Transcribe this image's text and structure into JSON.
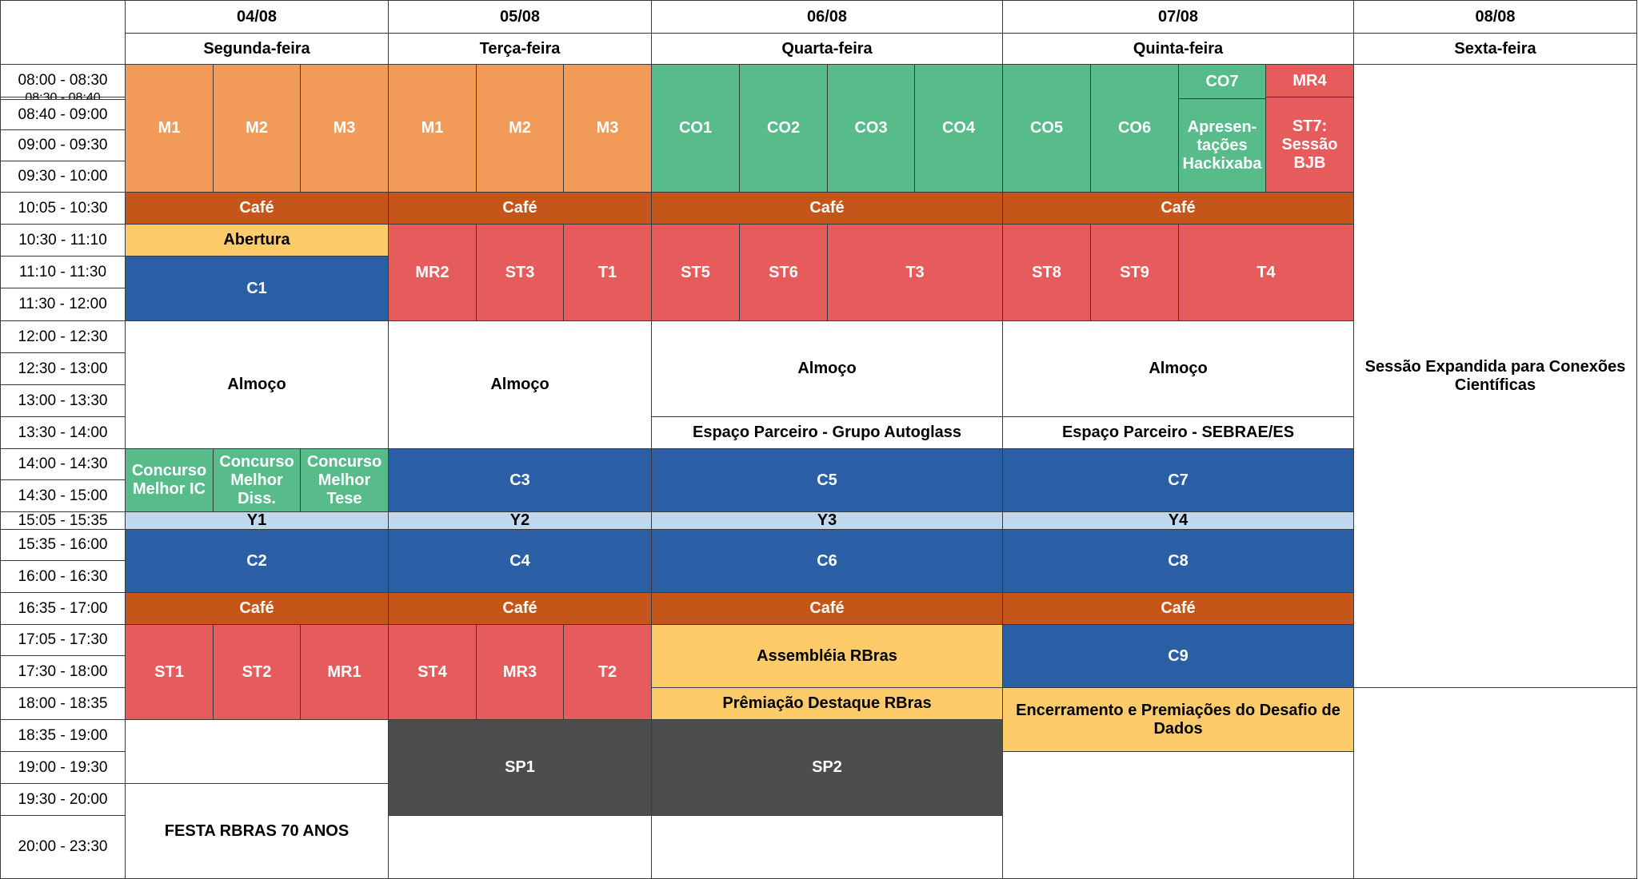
{
  "days": [
    {
      "date": "04/08",
      "weekday": "Segunda-feira"
    },
    {
      "date": "05/08",
      "weekday": "Terça-feira"
    },
    {
      "date": "06/08",
      "weekday": "Quarta-feira"
    },
    {
      "date": "07/08",
      "weekday": "Quinta-feira"
    },
    {
      "date": "08/08",
      "weekday": "Sexta-feira"
    }
  ],
  "time_slots": [
    "08:00 - 08:30",
    "08:30 - 08:40",
    "08:40 - 09:00",
    "09:00 - 09:30",
    "09:30 - 10:00",
    "10:05 - 10:30",
    "10:30 - 11:10",
    "11:10 - 11:30",
    "11:30 - 12:00",
    "12:00 - 12:30",
    "12:30 - 13:00",
    "13:00 - 13:30",
    "13:30 - 14:00",
    "14:00 - 14:30",
    "14:30 - 15:00",
    "15:05 - 15:35",
    "15:35 - 16:00",
    "16:00 - 16:30",
    "16:35 - 17:00",
    "17:05 - 17:30",
    "17:30 - 18:00",
    "18:00 - 18:35",
    "18:35 - 19:00",
    "19:00 - 19:30",
    "19:30 - 20:00",
    "20:00 - 23:30"
  ],
  "colors": {
    "minicurso": "#f29a57",
    "comunicacao_oral": "#57bb8a",
    "sessao_tecnica": "#e65c5c",
    "cafe": "#c4561a",
    "cerimonia": "#fdcb6a",
    "conferencia": "#2a5fa6",
    "youth": "#c2d8ef",
    "sessao_plenaria": "#4d4d4d",
    "livre": "#ffffff"
  },
  "sessions": [
    {
      "id": "mon-m1",
      "label": "M1",
      "cat": "minicurso",
      "day": 0,
      "part": [
        0,
        3
      ],
      "rows": [
        0,
        5
      ]
    },
    {
      "id": "mon-m2",
      "label": "M2",
      "cat": "minicurso",
      "day": 0,
      "part": [
        1,
        3
      ],
      "rows": [
        0,
        5
      ]
    },
    {
      "id": "mon-m3",
      "label": "M3",
      "cat": "minicurso",
      "day": 0,
      "part": [
        2,
        3
      ],
      "rows": [
        0,
        5
      ]
    },
    {
      "id": "mon-cafe-1",
      "label": "Café",
      "cat": "cafe",
      "day": 0,
      "part": [
        0,
        1
      ],
      "rows": [
        5,
        6
      ]
    },
    {
      "id": "mon-abertura",
      "label": "Abertura",
      "cat": "cerimonia",
      "day": 0,
      "part": [
        0,
        1
      ],
      "rows": [
        6,
        7
      ]
    },
    {
      "id": "mon-c1",
      "label": "C1",
      "cat": "conferencia",
      "day": 0,
      "part": [
        0,
        1
      ],
      "rows": [
        7,
        9
      ]
    },
    {
      "id": "mon-almoco",
      "label": "Almoço",
      "cat": "livre",
      "day": 0,
      "part": [
        0,
        1
      ],
      "rows": [
        9,
        13
      ]
    },
    {
      "id": "mon-concurso-ic",
      "label": "Concurso Melhor IC",
      "cat": "comunicacao_oral",
      "day": 0,
      "part": [
        0,
        3
      ],
      "rows": [
        13,
        15
      ]
    },
    {
      "id": "mon-concurso-diss",
      "label": "Concurso Melhor Diss.",
      "cat": "comunicacao_oral",
      "day": 0,
      "part": [
        1,
        3
      ],
      "rows": [
        13,
        15
      ]
    },
    {
      "id": "mon-concurso-tese",
      "label": "Concurso Melhor Tese",
      "cat": "comunicacao_oral",
      "day": 0,
      "part": [
        2,
        3
      ],
      "rows": [
        13,
        15
      ]
    },
    {
      "id": "mon-y1",
      "label": "Y1",
      "cat": "youth",
      "day": 0,
      "part": [
        0,
        1
      ],
      "rows": [
        15,
        16
      ]
    },
    {
      "id": "mon-c2",
      "label": "C2",
      "cat": "conferencia",
      "day": 0,
      "part": [
        0,
        1
      ],
      "rows": [
        16,
        18
      ]
    },
    {
      "id": "mon-cafe-2",
      "label": "Café",
      "cat": "cafe",
      "day": 0,
      "part": [
        0,
        1
      ],
      "rows": [
        18,
        19
      ]
    },
    {
      "id": "mon-st1",
      "label": "ST1",
      "cat": "sessao_tecnica",
      "day": 0,
      "part": [
        0,
        3
      ],
      "rows": [
        19,
        22
      ]
    },
    {
      "id": "mon-st2",
      "label": "ST2",
      "cat": "sessao_tecnica",
      "day": 0,
      "part": [
        1,
        3
      ],
      "rows": [
        19,
        22
      ]
    },
    {
      "id": "mon-mr1",
      "label": "MR1",
      "cat": "sessao_tecnica",
      "day": 0,
      "part": [
        2,
        3
      ],
      "rows": [
        19,
        22
      ]
    },
    {
      "id": "mon-livre",
      "label": "",
      "cat": "livre",
      "day": 0,
      "part": [
        0,
        1
      ],
      "rows": [
        22,
        24
      ]
    },
    {
      "id": "mon-festa",
      "label": "FESTA RBRAS 70 ANOS",
      "cat": "livre",
      "day": 0,
      "part": [
        0,
        1
      ],
      "rows": [
        24,
        26
      ]
    },
    {
      "id": "tue-m1",
      "label": "M1",
      "cat": "minicurso",
      "day": 1,
      "part": [
        0,
        3
      ],
      "rows": [
        0,
        5
      ]
    },
    {
      "id": "tue-m2",
      "label": "M2",
      "cat": "minicurso",
      "day": 1,
      "part": [
        1,
        3
      ],
      "rows": [
        0,
        5
      ]
    },
    {
      "id": "tue-m3",
      "label": "M3",
      "cat": "minicurso",
      "day": 1,
      "part": [
        2,
        3
      ],
      "rows": [
        0,
        5
      ]
    },
    {
      "id": "tue-cafe-1",
      "label": "Café",
      "cat": "cafe",
      "day": 1,
      "part": [
        0,
        1
      ],
      "rows": [
        5,
        6
      ]
    },
    {
      "id": "tue-mr2",
      "label": "MR2",
      "cat": "sessao_tecnica",
      "day": 1,
      "part": [
        0,
        3
      ],
      "rows": [
        6,
        9
      ]
    },
    {
      "id": "tue-st3",
      "label": "ST3",
      "cat": "sessao_tecnica",
      "day": 1,
      "part": [
        1,
        3
      ],
      "rows": [
        6,
        9
      ]
    },
    {
      "id": "tue-t1",
      "label": "T1",
      "cat": "sessao_tecnica",
      "day": 1,
      "part": [
        2,
        3
      ],
      "rows": [
        6,
        9
      ]
    },
    {
      "id": "tue-almoco",
      "label": "Almoço",
      "cat": "livre",
      "day": 1,
      "part": [
        0,
        1
      ],
      "rows": [
        9,
        13
      ]
    },
    {
      "id": "tue-c3",
      "label": "C3",
      "cat": "conferencia",
      "day": 1,
      "part": [
        0,
        1
      ],
      "rows": [
        13,
        15
      ]
    },
    {
      "id": "tue-y2",
      "label": "Y2",
      "cat": "youth",
      "day": 1,
      "part": [
        0,
        1
      ],
      "rows": [
        15,
        16
      ]
    },
    {
      "id": "tue-c4",
      "label": "C4",
      "cat": "conferencia",
      "day": 1,
      "part": [
        0,
        1
      ],
      "rows": [
        16,
        18
      ]
    },
    {
      "id": "tue-cafe-2",
      "label": "Café",
      "cat": "cafe",
      "day": 1,
      "part": [
        0,
        1
      ],
      "rows": [
        18,
        19
      ]
    },
    {
      "id": "tue-st4",
      "label": "ST4",
      "cat": "sessao_tecnica",
      "day": 1,
      "part": [
        0,
        3
      ],
      "rows": [
        19,
        22
      ]
    },
    {
      "id": "tue-mr3",
      "label": "MR3",
      "cat": "sessao_tecnica",
      "day": 1,
      "part": [
        1,
        3
      ],
      "rows": [
        19,
        22
      ]
    },
    {
      "id": "tue-t2",
      "label": "T2",
      "cat": "sessao_tecnica",
      "day": 1,
      "part": [
        2,
        3
      ],
      "rows": [
        19,
        22
      ]
    },
    {
      "id": "tue-sp1",
      "label": "SP1",
      "cat": "sessao_plenaria",
      "day": 1,
      "part": [
        0,
        1
      ],
      "rows": [
        22,
        25
      ]
    },
    {
      "id": "tue-livre",
      "label": "",
      "cat": "livre",
      "day": 1,
      "part": [
        0,
        1
      ],
      "rows": [
        25,
        26
      ]
    },
    {
      "id": "wed-co1",
      "label": "CO1",
      "cat": "comunicacao_oral",
      "day": 2,
      "part": [
        0,
        4
      ],
      "rows": [
        0,
        5
      ]
    },
    {
      "id": "wed-co2",
      "label": "CO2",
      "cat": "comunicacao_oral",
      "day": 2,
      "part": [
        1,
        4
      ],
      "rows": [
        0,
        5
      ]
    },
    {
      "id": "wed-co3",
      "label": "CO3",
      "cat": "comunicacao_oral",
      "day": 2,
      "part": [
        2,
        4
      ],
      "rows": [
        0,
        5
      ]
    },
    {
      "id": "wed-co4",
      "label": "CO4",
      "cat": "comunicacao_oral",
      "day": 2,
      "part": [
        3,
        4
      ],
      "rows": [
        0,
        5
      ]
    },
    {
      "id": "wed-cafe-1",
      "label": "Café",
      "cat": "cafe",
      "day": 2,
      "part": [
        0,
        1
      ],
      "rows": [
        5,
        6
      ]
    },
    {
      "id": "wed-st5",
      "label": "ST5",
      "cat": "sessao_tecnica",
      "day": 2,
      "part": [
        0,
        4
      ],
      "rows": [
        6,
        9
      ]
    },
    {
      "id": "wed-st6",
      "label": "ST6",
      "cat": "sessao_tecnica",
      "day": 2,
      "part": [
        1,
        4
      ],
      "rows": [
        6,
        9
      ]
    },
    {
      "id": "wed-t3",
      "label": "T3",
      "cat": "sessao_tecnica",
      "day": 2,
      "part": [
        2,
        4,
        2
      ],
      "rows": [
        6,
        9
      ]
    },
    {
      "id": "wed-almoco",
      "label": "Almoço",
      "cat": "livre",
      "day": 2,
      "part": [
        0,
        1
      ],
      "rows": [
        9,
        12
      ]
    },
    {
      "id": "wed-parceiro",
      "label": "Espaço Parceiro - Grupo Autoglass",
      "cat": "livre",
      "day": 2,
      "part": [
        0,
        1
      ],
      "rows": [
        12,
        13
      ]
    },
    {
      "id": "wed-c5",
      "label": "C5",
      "cat": "conferencia",
      "day": 2,
      "part": [
        0,
        1
      ],
      "rows": [
        13,
        15
      ]
    },
    {
      "id": "wed-y3",
      "label": "Y3",
      "cat": "youth",
      "day": 2,
      "part": [
        0,
        1
      ],
      "rows": [
        15,
        16
      ]
    },
    {
      "id": "wed-c6",
      "label": "C6",
      "cat": "conferencia",
      "day": 2,
      "part": [
        0,
        1
      ],
      "rows": [
        16,
        18
      ]
    },
    {
      "id": "wed-cafe-2",
      "label": "Café",
      "cat": "cafe",
      "day": 2,
      "part": [
        0,
        1
      ],
      "rows": [
        18,
        19
      ]
    },
    {
      "id": "wed-assembleia",
      "label": "Assembléia RBras",
      "cat": "cerimonia",
      "day": 2,
      "part": [
        0,
        1
      ],
      "rows": [
        19,
        21
      ]
    },
    {
      "id": "wed-premiacao",
      "label": "Prêmiação Destaque RBras",
      "cat": "cerimonia",
      "day": 2,
      "part": [
        0,
        1
      ],
      "rows": [
        21,
        22
      ]
    },
    {
      "id": "wed-sp2",
      "label": "SP2",
      "cat": "sessao_plenaria",
      "day": 2,
      "part": [
        0,
        1
      ],
      "rows": [
        22,
        25
      ]
    },
    {
      "id": "wed-livre",
      "label": "",
      "cat": "livre",
      "day": 2,
      "part": [
        0,
        1
      ],
      "rows": [
        25,
        26
      ]
    },
    {
      "id": "thu-co5",
      "label": "CO5",
      "cat": "comunicacao_oral",
      "day": 3,
      "part": [
        0,
        4
      ],
      "rows": [
        0,
        5
      ]
    },
    {
      "id": "thu-co6",
      "label": "CO6",
      "cat": "comunicacao_oral",
      "day": 3,
      "part": [
        1,
        4
      ],
      "rows": [
        0,
        5
      ]
    },
    {
      "id": "thu-co7",
      "label": "CO7",
      "cat": "comunicacao_oral",
      "day": 3,
      "part": [
        2,
        4
      ],
      "rows": [
        0,
        1.5
      ]
    },
    {
      "id": "thu-hackixaba",
      "label": "Apresen-\ntações\nHackixaba",
      "cat": "comunicacao_oral",
      "day": 3,
      "part": [
        2,
        4
      ],
      "rows": [
        1.5,
        5
      ]
    },
    {
      "id": "thu-mr4",
      "label": "MR4",
      "cat": "sessao_tecnica",
      "day": 3,
      "part": [
        3,
        4
      ],
      "rows": [
        0,
        1
      ]
    },
    {
      "id": "thu-st7",
      "label": "ST7:\nSessão\nBJB",
      "cat": "sessao_tecnica",
      "day": 3,
      "part": [
        3,
        4
      ],
      "rows": [
        1,
        5
      ]
    },
    {
      "id": "thu-cafe-1",
      "label": "Café",
      "cat": "cafe",
      "day": 3,
      "part": [
        0,
        1
      ],
      "rows": [
        5,
        6
      ]
    },
    {
      "id": "thu-st8",
      "label": "ST8",
      "cat": "sessao_tecnica",
      "day": 3,
      "part": [
        0,
        4
      ],
      "rows": [
        6,
        9
      ]
    },
    {
      "id": "thu-st9",
      "label": "ST9",
      "cat": "sessao_tecnica",
      "day": 3,
      "part": [
        1,
        4
      ],
      "rows": [
        6,
        9
      ]
    },
    {
      "id": "thu-t4",
      "label": "T4",
      "cat": "sessao_tecnica",
      "day": 3,
      "part": [
        2,
        4,
        2
      ],
      "rows": [
        6,
        9
      ]
    },
    {
      "id": "thu-almoco",
      "label": "Almoço",
      "cat": "livre",
      "day": 3,
      "part": [
        0,
        1
      ],
      "rows": [
        9,
        12
      ]
    },
    {
      "id": "thu-parceiro",
      "label": "Espaço Parceiro - SEBRAE/ES",
      "cat": "livre",
      "day": 3,
      "part": [
        0,
        1
      ],
      "rows": [
        12,
        13
      ]
    },
    {
      "id": "thu-c7",
      "label": "C7",
      "cat": "conferencia",
      "day": 3,
      "part": [
        0,
        1
      ],
      "rows": [
        13,
        15
      ]
    },
    {
      "id": "thu-y4",
      "label": "Y4",
      "cat": "youth",
      "day": 3,
      "part": [
        0,
        1
      ],
      "rows": [
        15,
        16
      ]
    },
    {
      "id": "thu-c8",
      "label": "C8",
      "cat": "conferencia",
      "day": 3,
      "part": [
        0,
        1
      ],
      "rows": [
        16,
        18
      ]
    },
    {
      "id": "thu-cafe-2",
      "label": "Café",
      "cat": "cafe",
      "day": 3,
      "part": [
        0,
        1
      ],
      "rows": [
        18,
        19
      ]
    },
    {
      "id": "thu-c9",
      "label": "C9",
      "cat": "conferencia",
      "day": 3,
      "part": [
        0,
        1
      ],
      "rows": [
        19,
        21
      ]
    },
    {
      "id": "thu-encerramento",
      "label": "Encerramento e Premiações do Desafio de Dados",
      "cat": "cerimonia",
      "day": 3,
      "part": [
        0,
        1
      ],
      "rows": [
        21,
        23
      ]
    },
    {
      "id": "thu-livre",
      "label": "",
      "cat": "livre",
      "day": 3,
      "part": [
        0,
        1
      ],
      "rows": [
        23,
        26
      ]
    },
    {
      "id": "fri-sessao-expandida",
      "label": "Sessão Expandida para Conexões Científicas",
      "cat": "livre",
      "day": 4,
      "part": [
        0,
        1
      ],
      "rows": [
        0,
        21
      ]
    },
    {
      "id": "fri-livre",
      "label": "",
      "cat": "livre",
      "day": 4,
      "part": [
        0,
        1
      ],
      "rows": [
        21,
        26
      ]
    }
  ]
}
